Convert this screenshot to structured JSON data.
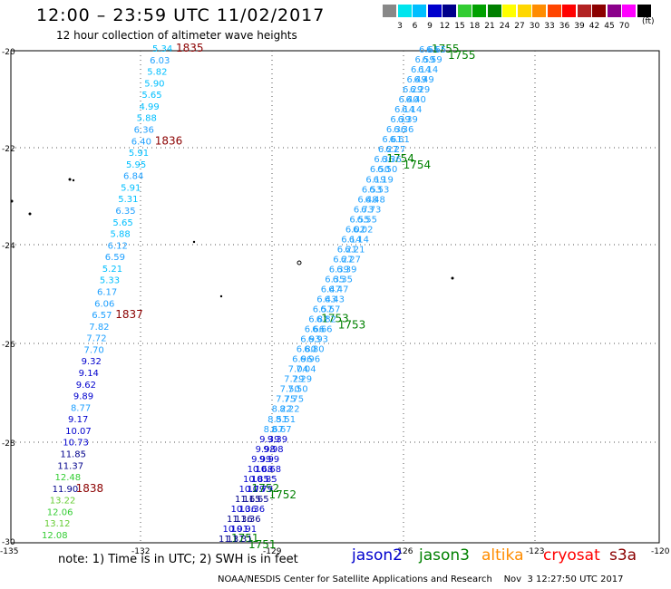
{
  "header": {
    "title": "12:00 – 23:59 UTC 11/02/2017",
    "subtitle": "12 hour collection of altimeter wave heights"
  },
  "scale": {
    "labels": [
      "3",
      "6",
      "9",
      "12",
      "15",
      "18",
      "21",
      "24",
      "27",
      "30",
      "33",
      "36",
      "39",
      "42",
      "45",
      "70"
    ],
    "unit": "(ft)",
    "colors": [
      "#888888",
      "#00e5ee",
      "#00bfff",
      "#0000cd",
      "#00008b",
      "#32cd32",
      "#00a000",
      "#008000",
      "#ffff00",
      "#ffd700",
      "#ff8c00",
      "#ff4500",
      "#ff0000",
      "#b22222",
      "#8b0000",
      "#8b008b",
      "#ff00ff",
      "#000000"
    ]
  },
  "axes": {
    "lat_labels": [
      "-20",
      "-22",
      "-24",
      "-26",
      "-28",
      "-30"
    ],
    "lon_labels": [
      "-135",
      "-132",
      "-129",
      "-126",
      "-123",
      "-120"
    ]
  },
  "tracks": [
    {
      "name": "track-1835-1838",
      "values": [
        "5.34",
        "6.03",
        "5.82",
        "5.90",
        "5.65",
        "4.99",
        "5.88",
        "6.36",
        "6.40",
        "5.91",
        "5.95",
        "6.84",
        "5.91",
        "5.31",
        "6.35",
        "5.65",
        "5.88",
        "6.12",
        "6.59",
        "5.21",
        "5.33",
        "6.17",
        "6.06",
        "6.57",
        "7.82",
        "7.72",
        "7.70",
        "9.32",
        "9.14",
        "9.62",
        "9.89",
        "8.77",
        "9.17",
        "10.07",
        "10.73",
        "11.85",
        "11.37",
        "12.48",
        "11.90",
        "13.22",
        "12.06",
        "13.12",
        "12.08"
      ],
      "time_labels": [
        {
          "text": "1835",
          "at": 0
        },
        {
          "text": "1836",
          "at": 8
        },
        {
          "text": "1837",
          "at": 23
        },
        {
          "text": "1838",
          "at": 38
        }
      ]
    },
    {
      "name": "track-1751-1755-a",
      "values": [
        "11.31",
        "10.91",
        "11.36",
        "10.36",
        "11.65",
        "10.79",
        "10.85",
        "10.68",
        "9.99",
        "9.98",
        "9.39",
        "8.67",
        "8.51",
        "8.22",
        "7.75",
        "7.50",
        "7.29",
        "7.04",
        "6.96",
        "6.80",
        "6.93",
        "6.66",
        "6.82",
        "6.57",
        "6.43",
        "6.47",
        "6.35",
        "6.39",
        "6.27",
        "6.21",
        "6.14",
        "6.02",
        "6.55",
        "6.73",
        "6.48",
        "6.53",
        "6.19",
        "6.50",
        "6.36",
        "6.27",
        "6.61",
        "6.36",
        "6.39",
        "6.14",
        "6.40",
        "6.29",
        "6.49",
        "6.14",
        "6.59",
        "6.65"
      ],
      "time_labels": [
        {
          "text": "1751",
          "at": 0
        },
        {
          "text": "1752",
          "at": 5
        },
        {
          "text": "1753",
          "at": 22
        },
        {
          "text": "1754",
          "at": 38
        },
        {
          "text": "1755",
          "at": 49
        }
      ]
    },
    {
      "name": "track-1751-1755-b",
      "values": [
        "11.31",
        "10.91",
        "11.36",
        "10.36",
        "11.65",
        "10.79",
        "10.85",
        "10.68",
        "9.99",
        "9.98",
        "9.39",
        "8.67",
        "8.51",
        "8.22",
        "7.75",
        "7.50",
        "7.29",
        "7.04",
        "6.96",
        "6.80",
        "6.93",
        "6.66",
        "6.82",
        "6.57",
        "6.43",
        "6.47",
        "6.35",
        "6.39",
        "6.27",
        "6.21",
        "6.14",
        "6.02",
        "6.55",
        "6.73",
        "6.48",
        "6.53",
        "6.19",
        "6.50",
        "6.36",
        "6.27",
        "6.61",
        "6.36",
        "6.39",
        "6.14",
        "6.40",
        "6.29",
        "6.49",
        "6.14",
        "6.59",
        "6.65"
      ],
      "time_labels": [
        {
          "text": "1751",
          "at": 0
        },
        {
          "text": "1752",
          "at": 5
        },
        {
          "text": "1753",
          "at": 22
        },
        {
          "text": "1754",
          "at": 38
        },
        {
          "text": "1755",
          "at": 49
        }
      ]
    }
  ],
  "legend": {
    "note": "note:  1) Time is in UTC;  2) SWH is in feet",
    "satellites": [
      {
        "name": "jason2",
        "color": "#0000cd"
      },
      {
        "name": "jason3",
        "color": "#008000"
      },
      {
        "name": "altika",
        "color": "#ff8c00"
      },
      {
        "name": "cryosat",
        "color": "#ff0000"
      },
      {
        "name": "s3a",
        "color": "#8b0000"
      }
    ]
  },
  "footer": "NOAA/NESDIS Center for Satellite Applications and Research    Nov  3 12:27:50 UTC 2017"
}
